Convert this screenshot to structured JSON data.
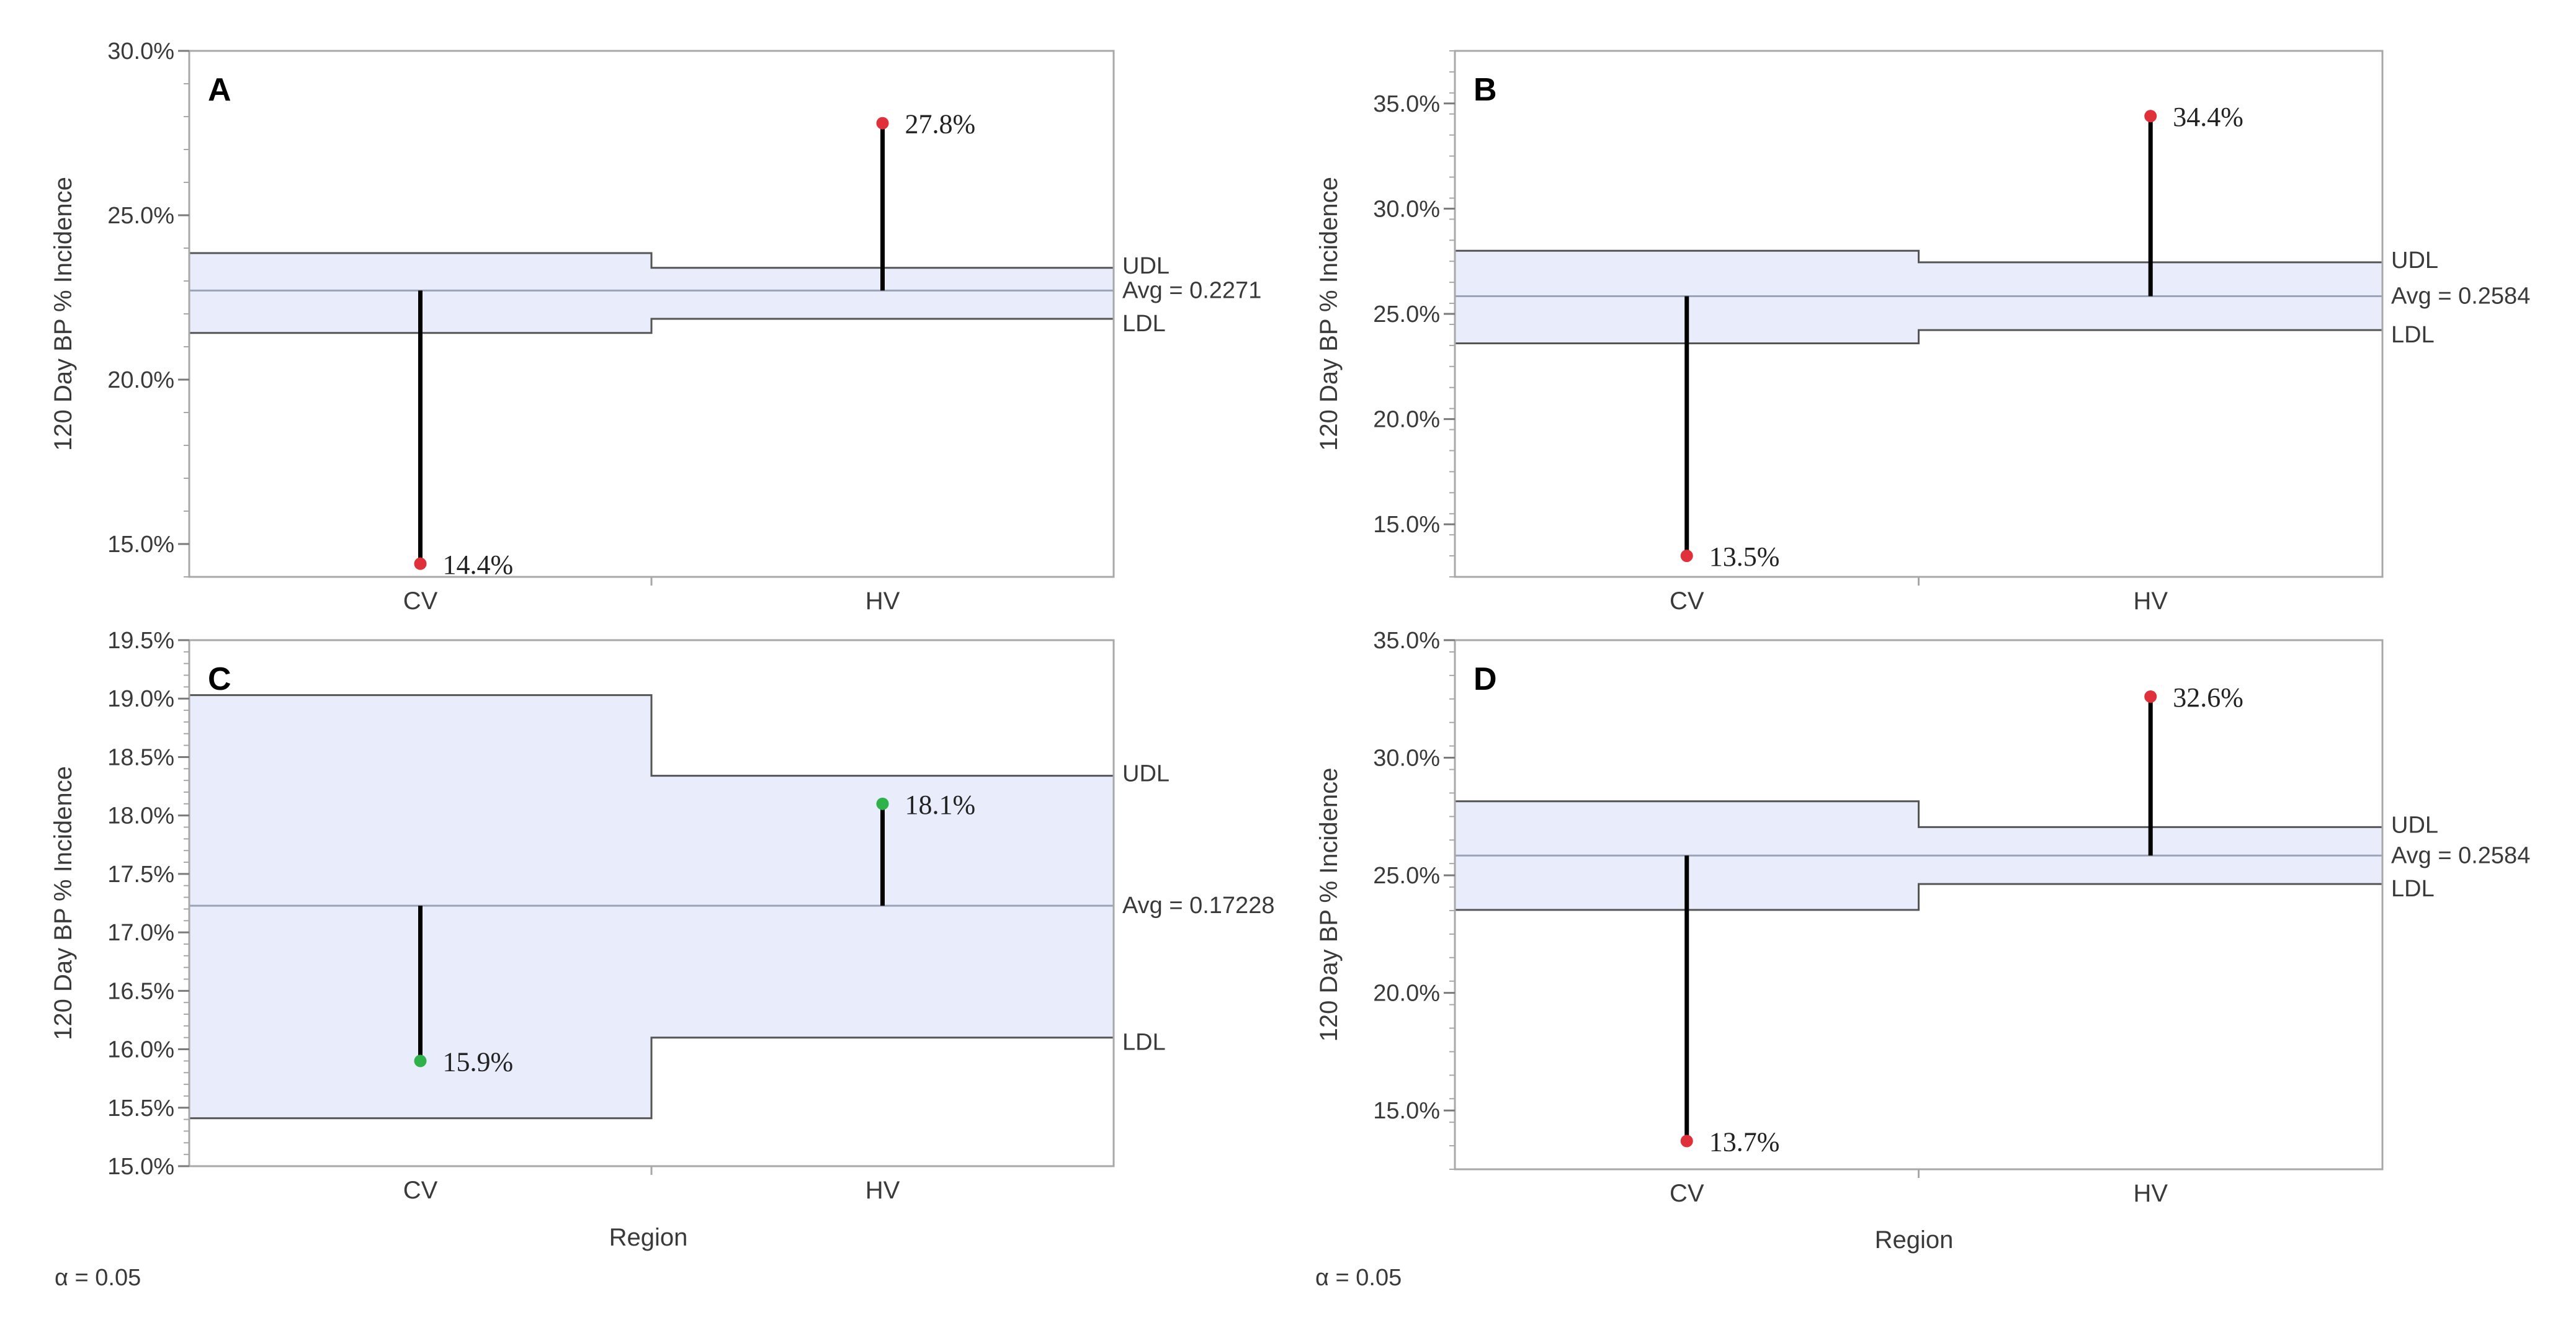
{
  "figure": {
    "xlabel": "Region",
    "alpha_left": "α = 0.05",
    "alpha_right": "α = 0.05"
  },
  "colors": {
    "band": "#e8ecfb",
    "out": "#e0303a",
    "in": "#2fb24a",
    "stem": "#000000",
    "frame": "#a8a8a8",
    "limit": "#555555",
    "avg": "#9aa3b8"
  },
  "chart_data": [
    {
      "panel": "A",
      "type": "analysis-of-means",
      "ylabel": "120 Day BP % Incidence",
      "xlabel": "",
      "ylim": [
        0.14,
        0.3
      ],
      "yticks": [
        0.15,
        0.2,
        0.25,
        0.3
      ],
      "ytick_labels": [
        "15.0%",
        "20.0%",
        "25.0%",
        "30.0%"
      ],
      "minor_step": 0.01,
      "categories": [
        "CV",
        "HV"
      ],
      "avg": 0.2271,
      "avg_label": "Avg = 0.2271",
      "udl": [
        0.2385,
        0.234
      ],
      "ldl": [
        0.2142,
        0.2185
      ],
      "udl_label": "UDL",
      "ldl_label": "LDL",
      "values": [
        0.144,
        0.278
      ],
      "value_labels": [
        "14.4%",
        "27.8%"
      ],
      "out_of_limits": [
        true,
        true
      ]
    },
    {
      "panel": "B",
      "type": "analysis-of-means",
      "ylabel": "120 Day BP % Incidence",
      "xlabel": "",
      "ylim": [
        0.125,
        0.375
      ],
      "yticks": [
        0.15,
        0.2,
        0.25,
        0.3,
        0.35
      ],
      "ytick_labels": [
        "15.0%",
        "20.0%",
        "25.0%",
        "30.0%",
        "35.0%"
      ],
      "minor_step": 0.01,
      "categories": [
        "CV",
        "HV"
      ],
      "avg": 0.2584,
      "avg_label": "Avg = 0.2584",
      "udl": [
        0.28,
        0.2745
      ],
      "ldl": [
        0.236,
        0.2423
      ],
      "udl_label": "UDL",
      "ldl_label": "LDL",
      "values": [
        0.135,
        0.344
      ],
      "value_labels": [
        "13.5%",
        "34.4%"
      ],
      "out_of_limits": [
        true,
        true
      ]
    },
    {
      "panel": "C",
      "type": "analysis-of-means",
      "ylabel": "120 Day BP % Incidence",
      "xlabel": "Region",
      "ylim": [
        0.15,
        0.195
      ],
      "yticks": [
        0.15,
        0.155,
        0.16,
        0.165,
        0.17,
        0.175,
        0.18,
        0.185,
        0.19,
        0.195
      ],
      "ytick_labels": [
        "15.0%",
        "15.5%",
        "16.0%",
        "16.5%",
        "17.0%",
        "17.5%",
        "18.0%",
        "18.5%",
        "19.0%",
        "19.5%"
      ],
      "minor_step": 0.001,
      "categories": [
        "CV",
        "HV"
      ],
      "avg": 0.17228,
      "avg_label": "Avg = 0.17228",
      "udl": [
        0.1903,
        0.1834
      ],
      "ldl": [
        0.1541,
        0.161
      ],
      "udl_label": "UDL",
      "ldl_label": "LDL",
      "values": [
        0.159,
        0.181
      ],
      "value_labels": [
        "15.9%",
        "18.1%"
      ],
      "out_of_limits": [
        false,
        false
      ]
    },
    {
      "panel": "D",
      "type": "analysis-of-means",
      "ylabel": "120 Day BP % Incidence",
      "xlabel": "Region",
      "ylim": [
        0.125,
        0.35
      ],
      "yticks": [
        0.15,
        0.2,
        0.25,
        0.3,
        0.35
      ],
      "ytick_labels": [
        "15.0%",
        "20.0%",
        "25.0%",
        "30.0%",
        "35.0%"
      ],
      "minor_step": 0.01,
      "categories": [
        "CV",
        "HV"
      ],
      "avg": 0.2584,
      "avg_label": "Avg = 0.2584",
      "udl": [
        0.2815,
        0.2705
      ],
      "ldl": [
        0.2353,
        0.2463
      ],
      "udl_label": "UDL",
      "ldl_label": "LDL",
      "values": [
        0.137,
        0.326
      ],
      "value_labels": [
        "13.7%",
        "32.6%"
      ],
      "out_of_limits": [
        true,
        true
      ]
    }
  ]
}
